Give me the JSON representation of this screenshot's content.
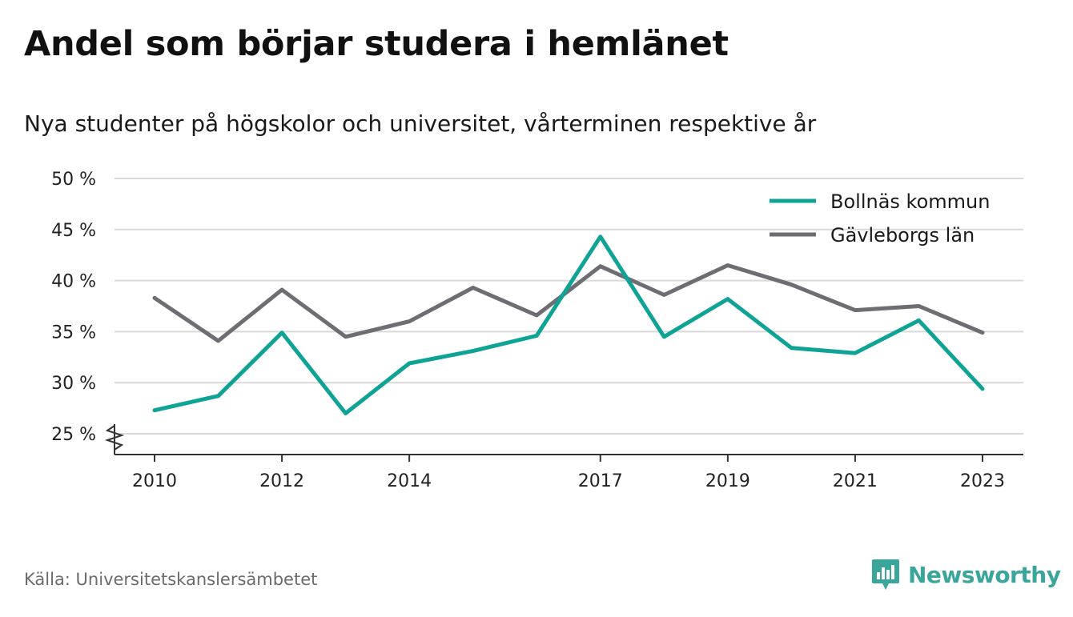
{
  "title": "Andel som börjar studera i hemlänet",
  "subtitle": "Nya studenter på högskolor och universitet, vårterminen respektive år",
  "source": "Källa: Universitetskanslersämbetet",
  "brand": {
    "name": "Newsworthy",
    "icon": "newsworthy-logo-icon",
    "color": "#3aa59a"
  },
  "chart_data": {
    "type": "line",
    "x": [
      2010,
      2011,
      2012,
      2013,
      2014,
      2015,
      2016,
      2017,
      2018,
      2019,
      2020,
      2021,
      2022,
      2023
    ],
    "x_tick_labels": [
      "2010",
      "2012",
      "2014",
      "2017",
      "2019",
      "2021",
      "2023"
    ],
    "x_ticks": [
      2010,
      2012,
      2014,
      2017,
      2019,
      2021,
      2023
    ],
    "y_tick_labels": [
      "25 %",
      "30 %",
      "35 %",
      "40 %",
      "45 %",
      "50 %"
    ],
    "y_ticks": [
      25,
      30,
      35,
      40,
      45,
      50
    ],
    "ylim": [
      25,
      50
    ],
    "y_axis_break": true,
    "grid": "horizontal",
    "legend_position": "top-right",
    "series": [
      {
        "name": "Bollnäs kommun",
        "color": "#0fa396",
        "values": [
          27.3,
          28.7,
          34.9,
          27.0,
          31.9,
          33.1,
          34.6,
          44.3,
          34.5,
          38.2,
          33.4,
          32.9,
          36.1,
          29.4
        ]
      },
      {
        "name": "Gävleborgs län",
        "color": "#6e6d73",
        "values": [
          38.3,
          34.1,
          39.1,
          34.5,
          36.0,
          39.3,
          36.6,
          41.4,
          38.6,
          41.5,
          39.6,
          37.1,
          37.5,
          34.9
        ]
      }
    ]
  }
}
